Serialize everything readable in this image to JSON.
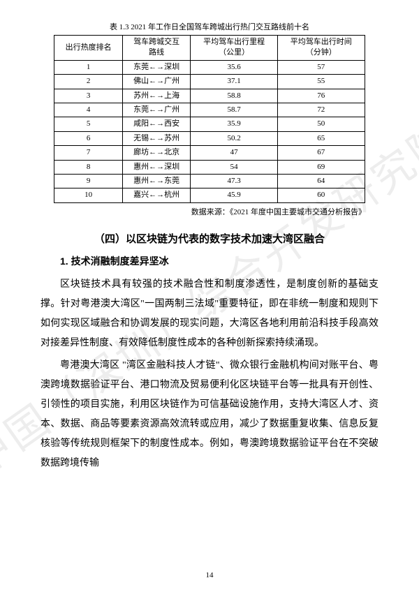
{
  "watermark": "中国（深圳）综合开发研究院",
  "table": {
    "title": "表 1.3 2021 年工作日全国驾车跨城出行热门交互路线前十名",
    "columns": [
      "出行热度排名",
      "驾车跨城交互\n路线",
      "平均驾车出行里程\n（公里）",
      "平均驾车出行时间\n（分钟）"
    ],
    "rows": [
      [
        "1",
        "东莞←→深圳",
        "35.6",
        "57"
      ],
      [
        "2",
        "佛山←→广州",
        "37.1",
        "55"
      ],
      [
        "3",
        "苏州←→上海",
        "58.8",
        "76"
      ],
      [
        "4",
        "东莞←→广州",
        "58.7",
        "72"
      ],
      [
        "5",
        "咸阳←→西安",
        "35.9",
        "50"
      ],
      [
        "6",
        "无锡←→苏州",
        "50.2",
        "65"
      ],
      [
        "7",
        "廊坊←→北京",
        "47",
        "67"
      ],
      [
        "8",
        "惠州←→深圳",
        "54",
        "69"
      ],
      [
        "9",
        "惠州←→东莞",
        "47.3",
        "64"
      ],
      [
        "10",
        "嘉兴←→杭州",
        "45.9",
        "60"
      ]
    ],
    "source": "数据来源：《2021 年度中国主要城市交通分析报告》"
  },
  "section_heading": "（四）以区块链为代表的数字技术加速大湾区融合",
  "subheading": "1. 技术消融制度差异坚冰",
  "para1": "区块链技术具有较强的技术融合性和制度渗透性，是制度创新的基础支撑。针对粤港澳大湾区\"一国两制三法域\"重要特征，即在非统一制度和规则下如何实现区域融合和协调发展的现实问题，大湾区各地利用前沿科技手段高效对接差异性制度、有效降低制度性成本的各种创新探索持续涌现。",
  "para2": "粤港澳大湾区 \"湾区金融科技人才链\"、微众银行金融机构间对账平台、粤澳跨境数据验证平台、港口物流及贸易便利化区块链平台等一批具有开创性、引领性的项目实施，利用区块链作为可信基础设施作用，支持大湾区人才、资本、数据、商品等要素资源高效流转或应用，减少了数据重复收集、信息反复核验等传统规则框架下的制度性成本。例如，粤澳跨境数据验证平台在不突破数据跨境传输",
  "page_number": "14"
}
